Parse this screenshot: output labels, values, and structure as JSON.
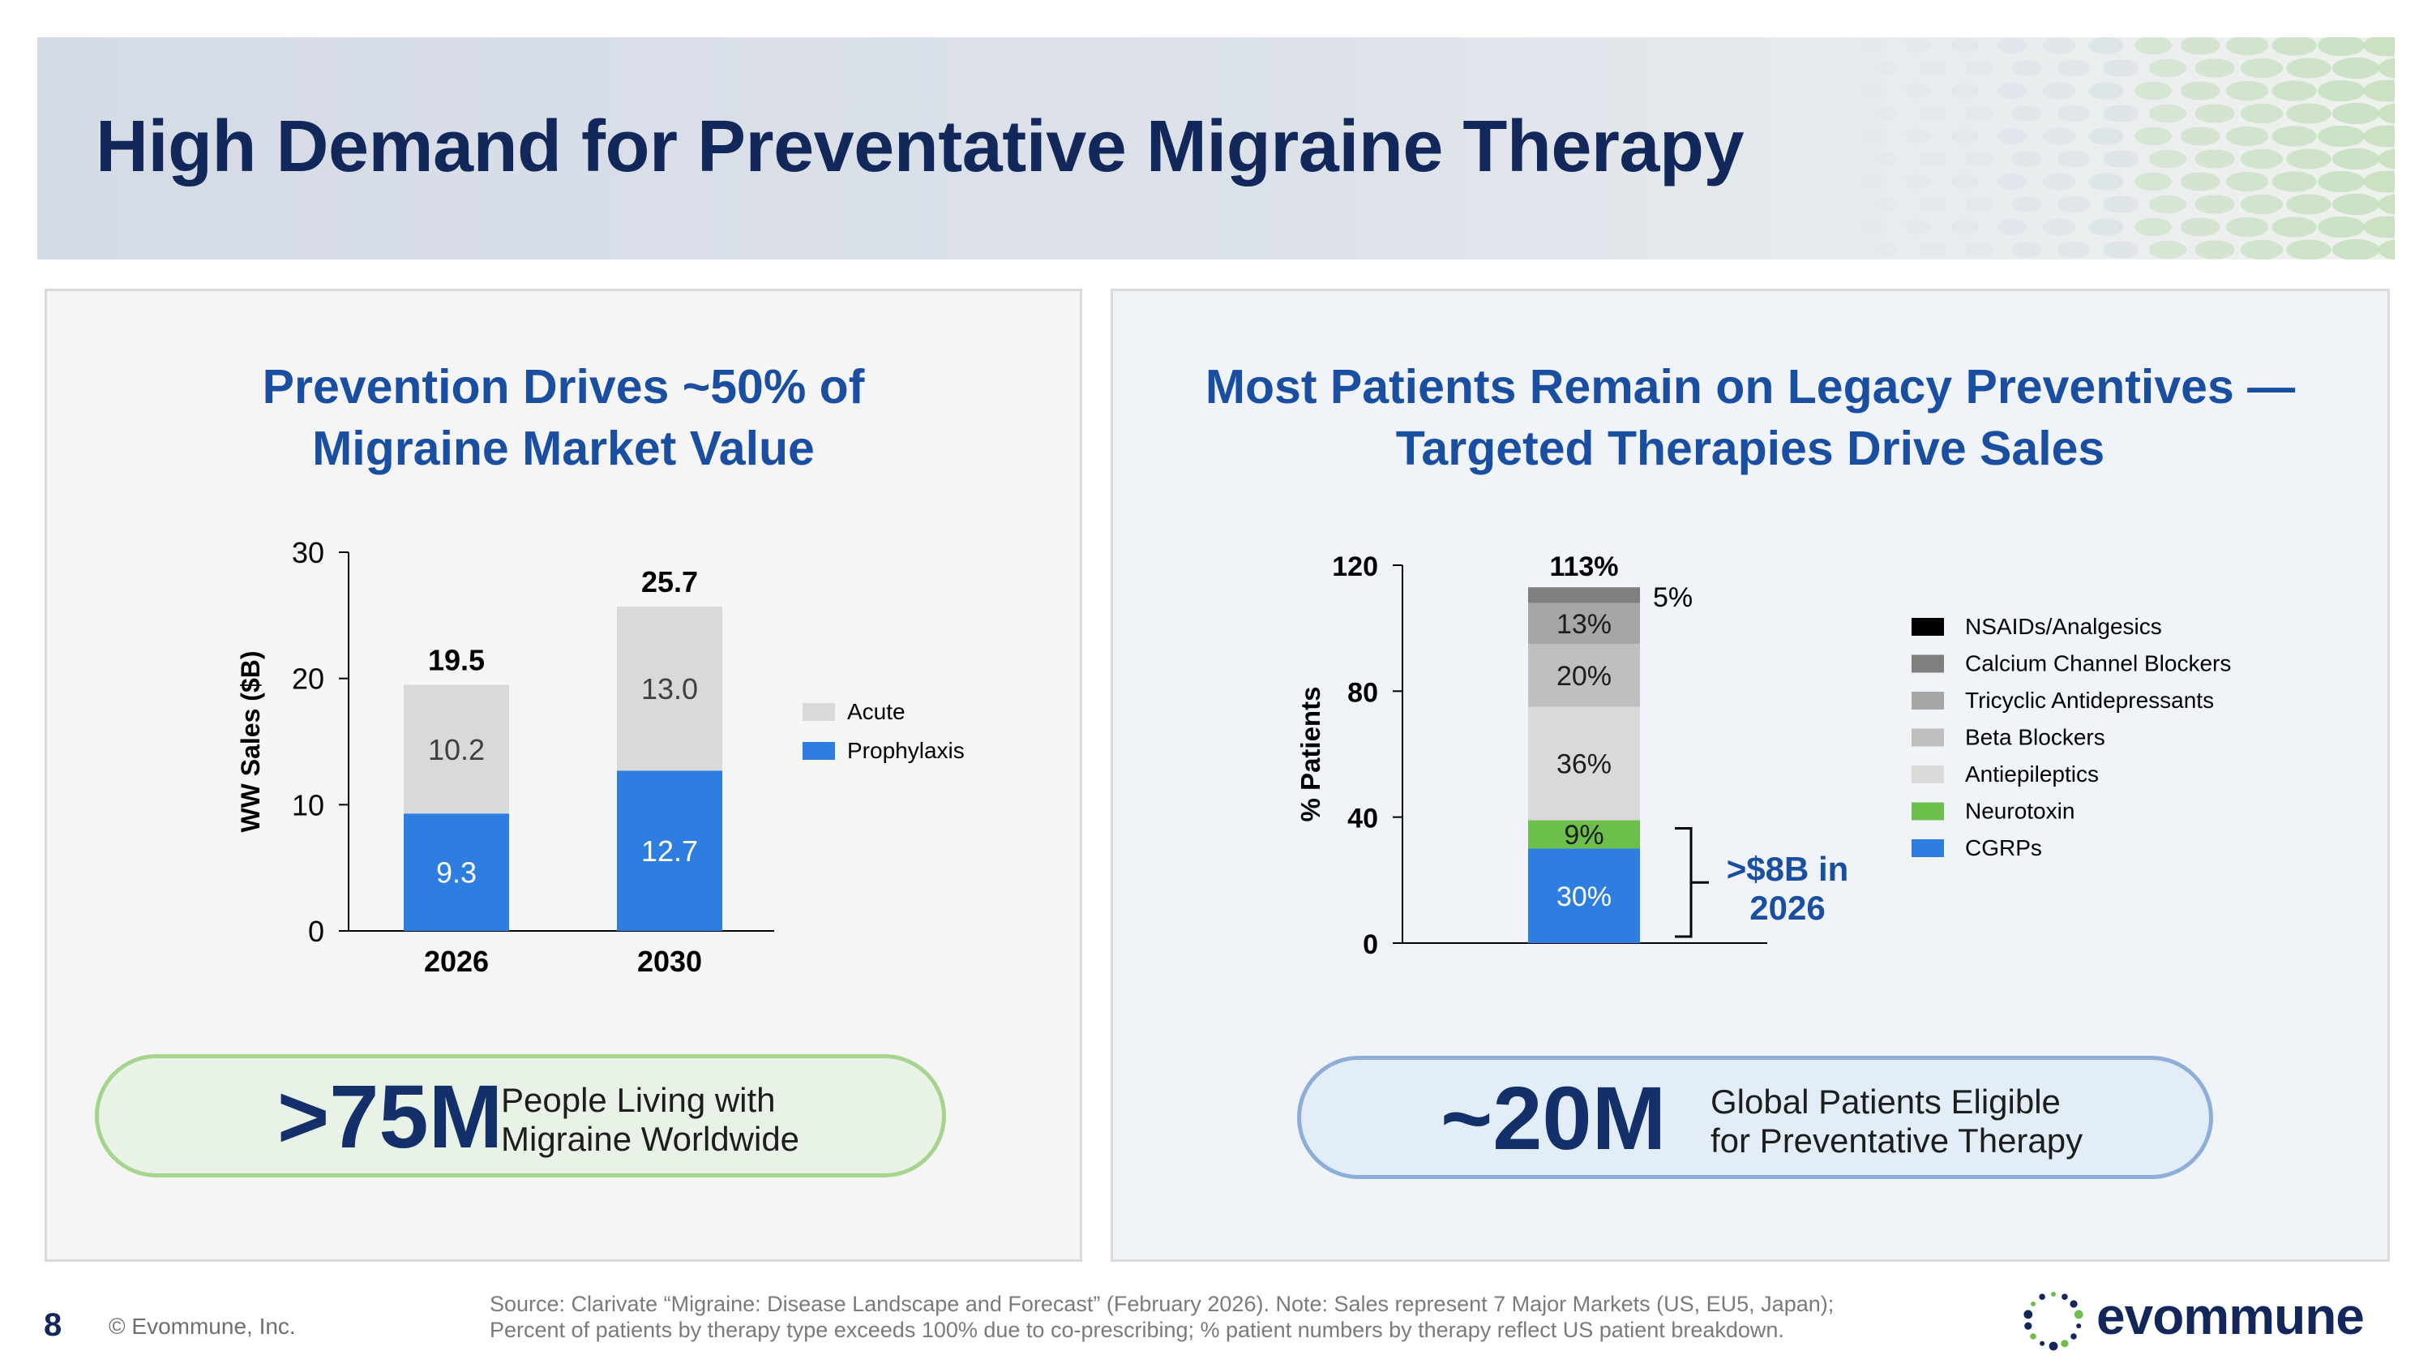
{
  "slide": {
    "title": "High Demand for Preventative Migraine Therapy",
    "page_number": "8",
    "copyright": "© Evommune, Inc.",
    "source_line1": "Source: Clarivate “Migraine: Disease Landscape and Forecast” (February 2026).  Note: Sales represent 7 Major Markets (US, EU5, Japan);",
    "source_line2": "Percent of patients by therapy type exceeds 100% due to co-prescribing; % patient numbers by therapy reflect US patient breakdown.",
    "logo_text": "evommune"
  },
  "left_panel": {
    "title_line1": "Prevention Drives ~50% of",
    "title_line2": "Migraine Market Value",
    "stat_value": ">75M",
    "stat_line1": "People Living with",
    "stat_line2": "Migraine Worldwide"
  },
  "right_panel": {
    "title_line1": "Most Patients Remain on Legacy Preventives —",
    "title_line2": "Targeted Therapies Drive Sales",
    "stat_value": "~20M",
    "stat_line1": "Global Patients Eligible",
    "stat_line2": "for Preventative Therapy",
    "callout_line1": ">$8B in",
    "callout_line2": "2026"
  },
  "colors": {
    "title_navy": "#13285a",
    "panel_title_blue": "#1a4ea0",
    "cgrp_blue": "#2e7de1",
    "neurotoxin_green": "#6cbf4b",
    "acute_gray": "#d9d9d9"
  },
  "chart_data": [
    {
      "type": "bar",
      "stacked": true,
      "categories": [
        "2026",
        "2030"
      ],
      "series": [
        {
          "name": "Prophylaxis",
          "values": [
            9.3,
            12.7
          ],
          "color": "#2e7de1"
        },
        {
          "name": "Acute",
          "values": [
            10.2,
            13.0
          ],
          "color": "#d9d9d9"
        }
      ],
      "totals": [
        "19.5",
        "25.7"
      ],
      "ylabel": "WW Sales ($B)",
      "ylim": [
        0,
        30
      ],
      "yticks": [
        "0",
        "10",
        "20",
        "30"
      ],
      "legend_position": "right",
      "grid": false
    },
    {
      "type": "bar",
      "stacked": true,
      "categories": [
        ""
      ],
      "series": [
        {
          "name": "CGRPs",
          "values": [
            30
          ],
          "label": "30%",
          "color": "#2e7de1"
        },
        {
          "name": "Neurotoxin",
          "values": [
            9
          ],
          "label": "9%",
          "color": "#6cbf4b"
        },
        {
          "name": "Antiepileptics",
          "values": [
            36
          ],
          "label": "36%",
          "color": "#d9d9d9"
        },
        {
          "name": "Beta Blockers",
          "values": [
            20
          ],
          "label": "20%",
          "color": "#bfbfbf"
        },
        {
          "name": "Tricyclic Antidepressants",
          "values": [
            13
          ],
          "label": "13%",
          "color": "#a6a6a6"
        },
        {
          "name": "Calcium Channel Blockers",
          "values": [
            5
          ],
          "label": "5%",
          "color": "#7f7f7f"
        },
        {
          "name": "NSAIDs/Analgesics",
          "values": [
            0
          ],
          "label": "",
          "color": "#000000"
        }
      ],
      "legend_order": [
        "NSAIDs/Analgesics",
        "Calcium Channel Blockers",
        "Tricyclic Antidepressants",
        "Beta Blockers",
        "Antiepileptics",
        "Neurotoxin",
        "CGRPs"
      ],
      "total": "113%",
      "ylabel": "% Patients",
      "ylim": [
        0,
        120
      ],
      "yticks": [
        "0",
        "40",
        "80",
        "120"
      ],
      "legend_position": "right",
      "grid": false
    }
  ]
}
